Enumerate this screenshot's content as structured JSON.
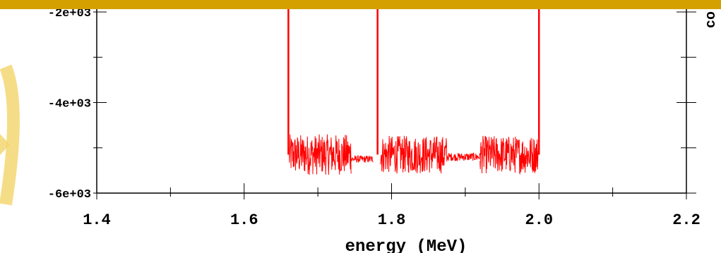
{
  "colors": {
    "banner": "#D4A000",
    "axis": "#000000",
    "series": "#FF0000",
    "watermark": "#F3D56A"
  },
  "chart_data": {
    "type": "line",
    "xlabel": "energy (MeV)",
    "ylabel_partial": "co",
    "xlim": [
      1.4,
      2.2
    ],
    "ylim": [
      -6000,
      -2000
    ],
    "x_ticks": [
      1.4,
      1.6,
      1.8,
      2.0,
      2.2
    ],
    "x_tick_labels": [
      "1.4",
      "1.6",
      "1.8",
      "2.0",
      "2.2"
    ],
    "y_ticks": [
      -2000,
      -4000,
      -6000
    ],
    "y_tick_labels": [
      "-2e+03",
      "-4e+03",
      "-6e+03"
    ],
    "grid": false,
    "series": [
      {
        "color": "#FF0000",
        "segments": [
          {
            "x_start": 1.661,
            "x_end": 1.745,
            "mean": -5150,
            "noise": 450
          },
          {
            "x_start": 1.745,
            "x_end": 1.775,
            "mean": -5250,
            "noise": 80
          },
          {
            "x_start": 1.785,
            "x_end": 1.875,
            "mean": -5150,
            "noise": 420
          },
          {
            "x_start": 1.875,
            "x_end": 1.92,
            "mean": -5200,
            "noise": 90
          },
          {
            "x_start": 1.92,
            "x_end": 1.999,
            "mean": -5150,
            "noise": 420
          }
        ],
        "vertical_lines": [
          1.66,
          1.781,
          2.0
        ]
      }
    ]
  }
}
